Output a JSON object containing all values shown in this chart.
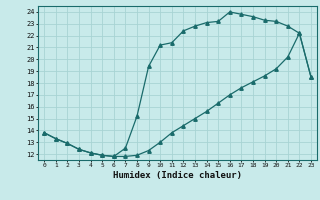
{
  "xlabel": "Humidex (Indice chaleur)",
  "bg_color": "#c8eaea",
  "line_color": "#1a6b6b",
  "grid_color": "#a8d4d4",
  "upper_x": [
    0,
    1,
    2,
    3,
    4,
    5,
    6,
    7,
    8,
    9,
    10,
    11,
    12,
    13,
    14,
    15,
    16,
    17,
    18,
    19,
    20,
    21,
    22,
    23
  ],
  "upper_y": [
    13.8,
    13.3,
    12.9,
    12.4,
    12.1,
    11.9,
    11.8,
    12.5,
    15.2,
    19.4,
    21.2,
    21.4,
    22.4,
    22.8,
    23.1,
    23.2,
    24.0,
    23.8,
    23.6,
    23.3,
    23.2,
    22.8,
    22.2,
    18.5
  ],
  "lower_x": [
    0,
    1,
    2,
    3,
    4,
    5,
    6,
    7,
    8,
    9,
    10,
    11,
    12,
    13,
    14,
    15,
    16,
    17,
    18,
    19,
    20,
    21,
    22,
    23
  ],
  "lower_y": [
    13.8,
    13.3,
    12.9,
    12.4,
    12.1,
    11.9,
    11.8,
    11.8,
    11.9,
    12.3,
    13.0,
    13.8,
    14.4,
    15.0,
    15.6,
    16.3,
    17.0,
    17.6,
    18.1,
    18.6,
    19.2,
    20.2,
    22.2,
    18.5
  ],
  "xlim": [
    -0.5,
    23.5
  ],
  "ylim": [
    11.5,
    24.5
  ],
  "xticks": [
    0,
    1,
    2,
    3,
    4,
    5,
    6,
    7,
    8,
    9,
    10,
    11,
    12,
    13,
    14,
    15,
    16,
    17,
    18,
    19,
    20,
    21,
    22,
    23
  ],
  "yticks": [
    12,
    13,
    14,
    15,
    16,
    17,
    18,
    19,
    20,
    21,
    22,
    23,
    24
  ]
}
